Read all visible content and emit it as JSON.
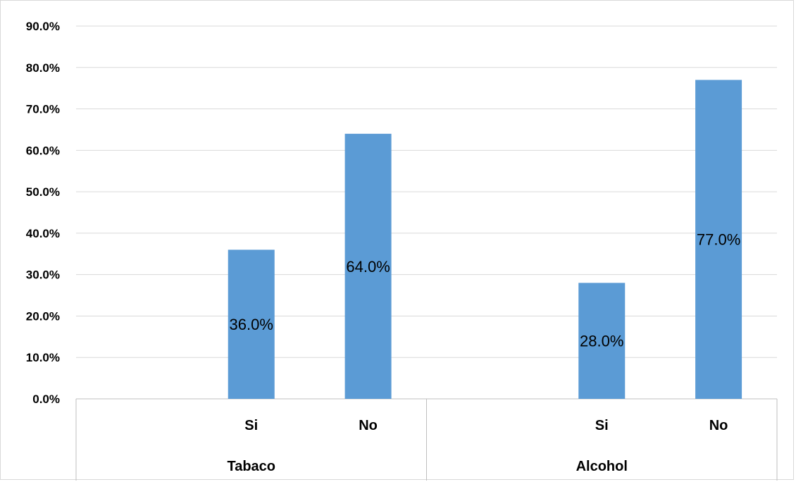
{
  "colors": {
    "bar": "#5b9bd5",
    "grid": "#d9d9d9",
    "axis": "#bfbfbf",
    "text": "#000000"
  },
  "chart_data": {
    "type": "bar",
    "title": "",
    "xlabel": "",
    "ylabel": "",
    "ylim": [
      0,
      90
    ],
    "y_ticks": [
      "0.0%",
      "10.0%",
      "20.0%",
      "30.0%",
      "40.0%",
      "50.0%",
      "60.0%",
      "70.0%",
      "80.0%",
      "90.0%"
    ],
    "grid": true,
    "legend": "none",
    "groups": [
      {
        "name": "Tabaco",
        "categories": [
          "Si",
          "No"
        ],
        "values": [
          36.0,
          64.0
        ],
        "labels": [
          "36.0%",
          "64.0%"
        ]
      },
      {
        "name": "Alcohol",
        "categories": [
          "Si",
          "No"
        ],
        "values": [
          28.0,
          77.0
        ],
        "labels": [
          "28.0%",
          "77.0%"
        ]
      }
    ]
  }
}
